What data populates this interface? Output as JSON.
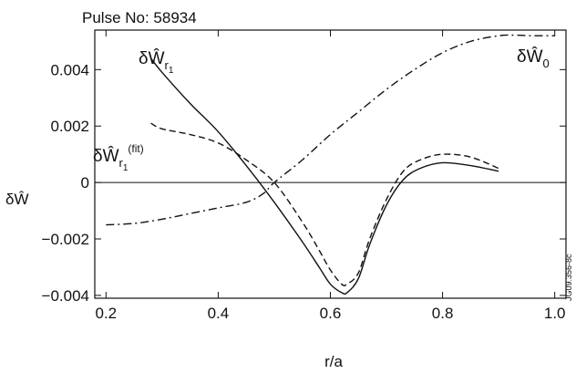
{
  "chart_data": {
    "type": "line",
    "title": "Pulse No: 58934",
    "xlabel": "r/a",
    "ylabel": "δŴ",
    "xlim": [
      0.18,
      1.02
    ],
    "ylim": [
      -0.0041,
      0.0054
    ],
    "x_ticks": [
      0.2,
      0.4,
      0.6,
      0.8,
      1.0
    ],
    "x_tick_labels": [
      "0.2",
      "0.4",
      "0.6",
      "0.8",
      "1.0"
    ],
    "y_ticks": [
      -0.004,
      -0.002,
      0,
      0.002,
      0.004
    ],
    "y_tick_labels": [
      "−0.004",
      "−0.002",
      "0",
      "0.002",
      "0.004"
    ],
    "grid": false,
    "zero_line": true,
    "watermark": "JG09.356-8c",
    "series": [
      {
        "name": "δŴr1",
        "label_main": "δŴ",
        "label_sub": "r",
        "label_subsub": "1",
        "label_sup": "",
        "style": "solid",
        "color": "#111111",
        "x": [
          0.28,
          0.3,
          0.35,
          0.4,
          0.45,
          0.5,
          0.55,
          0.58,
          0.6,
          0.62,
          0.63,
          0.65,
          0.67,
          0.7,
          0.73,
          0.76,
          0.8,
          0.85,
          0.9
        ],
        "y": [
          0.0044,
          0.0039,
          0.0028,
          0.0018,
          0.0006,
          -0.0007,
          -0.0021,
          -0.003,
          -0.0036,
          -0.0039,
          -0.0039,
          -0.0034,
          -0.0022,
          -0.0008,
          0.0001,
          0.0005,
          0.0007,
          0.0006,
          0.0004
        ]
      },
      {
        "name": "δŴr1(fit)",
        "label_main": "δŴ",
        "label_sub": "r",
        "label_subsub": "1",
        "label_sup": "(fit)",
        "style": "dashed",
        "color": "#111111",
        "x": [
          0.28,
          0.3,
          0.35,
          0.4,
          0.45,
          0.5,
          0.55,
          0.58,
          0.6,
          0.62,
          0.63,
          0.65,
          0.67,
          0.7,
          0.73,
          0.76,
          0.8,
          0.85,
          0.9
        ],
        "y": [
          0.0021,
          0.0019,
          0.0017,
          0.0014,
          0.0008,
          0.0,
          -0.0014,
          -0.0024,
          -0.0031,
          -0.0036,
          -0.0036,
          -0.0032,
          -0.002,
          -0.0006,
          0.0004,
          0.0008,
          0.001,
          0.0009,
          0.0005
        ]
      },
      {
        "name": "δŴ0",
        "label_main": "δŴ",
        "label_sub": "0",
        "label_subsub": "",
        "label_sup": "",
        "style": "dashdot",
        "color": "#111111",
        "x": [
          0.2,
          0.25,
          0.3,
          0.35,
          0.4,
          0.45,
          0.48,
          0.5,
          0.55,
          0.6,
          0.65,
          0.7,
          0.75,
          0.8,
          0.85,
          0.9,
          0.93,
          0.96,
          1.0
        ],
        "y": [
          -0.0015,
          -0.00145,
          -0.0013,
          -0.0011,
          -0.0009,
          -0.0007,
          -0.0004,
          0.0,
          0.0008,
          0.0017,
          0.0025,
          0.0033,
          0.004,
          0.0046,
          0.005,
          0.0052,
          0.00522,
          0.0052,
          0.0052
        ]
      }
    ]
  }
}
